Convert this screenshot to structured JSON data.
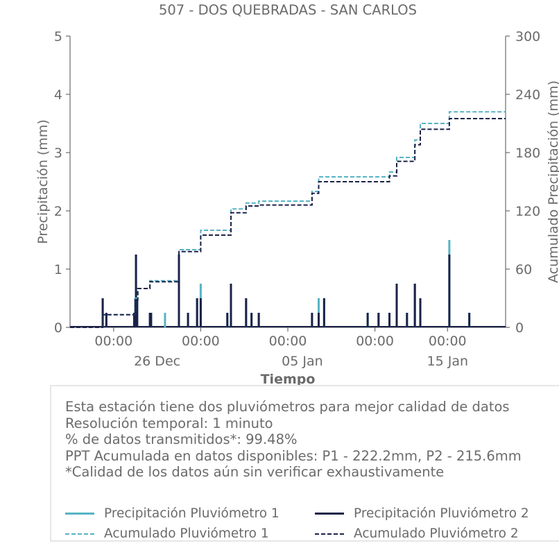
{
  "chart_data": {
    "type": "line",
    "title": "507 - DOS QUEBRADAS - SAN CARLOS",
    "xlabel": "Tiempo",
    "ylabel": "Precipitación (mm)",
    "y2label": "Acumulado Precipitación (mm)",
    "x_range": [
      "2023-12-20",
      "2024-01-19"
    ],
    "ylim": [
      0,
      5
    ],
    "y2lim": [
      0,
      300
    ],
    "yticks": [
      0,
      1,
      2,
      3,
      4,
      5
    ],
    "y2ticks": [
      0,
      60,
      120,
      180,
      240,
      300
    ],
    "xticks": [
      {
        "date": "2023-12-23",
        "label": "00:00",
        "sublabel": ""
      },
      {
        "date": "2023-12-29",
        "label": "00:00",
        "sublabel": ""
      },
      {
        "date": "2024-01-04",
        "label": "00:00",
        "sublabel": ""
      },
      {
        "date": "2024-01-10",
        "label": "00:00",
        "sublabel": ""
      },
      {
        "date": "2024-01-15",
        "label": "00:00",
        "sublabel": ""
      }
    ],
    "xlabels_lower": [
      {
        "date": "2023-12-26",
        "label": "26 Dec"
      },
      {
        "date": "2024-01-05",
        "label": "05 Jan"
      },
      {
        "date": "2024-01-15",
        "label": "15 Jan"
      }
    ],
    "grid": false,
    "series": [
      {
        "name": "Precipitación Pluviómetro 1",
        "axis": "left",
        "style": "bars",
        "color": "#56b4c4",
        "points": [
          [
            "2023-12-22 06:00",
            0.5
          ],
          [
            "2023-12-22 12:00",
            0.25
          ],
          [
            "2023-12-24 10:00",
            0.25
          ],
          [
            "2023-12-24 12:00",
            0.5
          ],
          [
            "2023-12-24 13:00",
            1.25
          ],
          [
            "2023-12-24 15:00",
            0.5
          ],
          [
            "2023-12-25 12:00",
            0.25
          ],
          [
            "2023-12-25 14:00",
            0.25
          ],
          [
            "2023-12-26 13:00",
            0.25
          ],
          [
            "2023-12-27 12:00",
            1.25
          ],
          [
            "2023-12-28 03:00",
            0.25
          ],
          [
            "2023-12-28 18:00",
            0.5
          ],
          [
            "2023-12-29 00:00",
            0.75
          ],
          [
            "2023-12-30 20:00",
            0.25
          ],
          [
            "2023-12-31 02:00",
            0.75
          ],
          [
            "2024-01-01 03:00",
            0.5
          ],
          [
            "2024-01-01 12:00",
            0.25
          ],
          [
            "2024-01-02 00:00",
            0.25
          ],
          [
            "2024-01-05 16:00",
            0.25
          ],
          [
            "2024-01-06 03:00",
            0.5
          ],
          [
            "2024-01-06 12:00",
            0.5
          ],
          [
            "2024-01-09 12:00",
            0.25
          ],
          [
            "2024-01-10 06:00",
            0.25
          ],
          [
            "2024-01-11 00:00",
            0.25
          ],
          [
            "2024-01-11 12:00",
            0.75
          ],
          [
            "2024-01-12 05:00",
            0.25
          ],
          [
            "2024-01-12 18:00",
            0.75
          ],
          [
            "2024-01-13 03:00",
            0.5
          ],
          [
            "2024-01-15 03:00",
            1.5
          ],
          [
            "2024-01-16 12:00",
            0.25
          ]
        ]
      },
      {
        "name": "Precipitación Pluviómetro 2",
        "axis": "left",
        "style": "bars",
        "color": "#1b2248",
        "points": [
          [
            "2023-12-22 06:00",
            0.5
          ],
          [
            "2023-12-22 12:00",
            0.25
          ],
          [
            "2023-12-24 10:00",
            0.25
          ],
          [
            "2023-12-24 12:00",
            0.5
          ],
          [
            "2023-12-24 13:00",
            1.25
          ],
          [
            "2023-12-24 15:00",
            0.5
          ],
          [
            "2023-12-25 12:00",
            0.25
          ],
          [
            "2023-12-25 14:00",
            0.25
          ],
          [
            "2023-12-27 12:00",
            1.25
          ],
          [
            "2023-12-28 03:00",
            0.25
          ],
          [
            "2023-12-28 18:00",
            0.5
          ],
          [
            "2023-12-29 00:00",
            0.5
          ],
          [
            "2023-12-30 20:00",
            0.25
          ],
          [
            "2023-12-31 02:00",
            0.75
          ],
          [
            "2024-01-01 03:00",
            0.5
          ],
          [
            "2024-01-01 12:00",
            0.25
          ],
          [
            "2024-01-02 00:00",
            0.25
          ],
          [
            "2024-01-05 16:00",
            0.25
          ],
          [
            "2024-01-06 03:00",
            0.25
          ],
          [
            "2024-01-06 12:00",
            0.5
          ],
          [
            "2024-01-09 12:00",
            0.25
          ],
          [
            "2024-01-10 06:00",
            0.25
          ],
          [
            "2024-01-11 00:00",
            0.25
          ],
          [
            "2024-01-11 12:00",
            0.75
          ],
          [
            "2024-01-12 05:00",
            0.25
          ],
          [
            "2024-01-12 18:00",
            0.75
          ],
          [
            "2024-01-13 03:00",
            0.5
          ],
          [
            "2024-01-15 03:00",
            1.25
          ],
          [
            "2024-01-16 12:00",
            0.25
          ]
        ]
      },
      {
        "name": "Acumulado Pluviómetro 1",
        "axis": "right",
        "style": "dashed-step",
        "color": "#56b4c4",
        "points": [
          [
            "2023-12-20 00:00",
            0
          ],
          [
            "2023-12-22 06:00",
            13
          ],
          [
            "2023-12-24 12:00",
            30
          ],
          [
            "2023-12-24 16:00",
            40
          ],
          [
            "2023-12-25 12:00",
            48
          ],
          [
            "2023-12-27 12:00",
            80
          ],
          [
            "2023-12-29 00:00",
            100
          ],
          [
            "2023-12-31 02:00",
            122
          ],
          [
            "2024-01-01 03:00",
            128
          ],
          [
            "2024-01-02 00:00",
            130
          ],
          [
            "2024-01-05 16:00",
            140
          ],
          [
            "2024-01-06 03:00",
            155
          ],
          [
            "2024-01-11 00:00",
            160
          ],
          [
            "2024-01-11 12:00",
            175
          ],
          [
            "2024-01-12 18:00",
            193
          ],
          [
            "2024-01-13 03:00",
            210
          ],
          [
            "2024-01-15 03:00",
            222
          ],
          [
            "2024-01-19 00:00",
            222
          ]
        ]
      },
      {
        "name": "Acumulado Pluviómetro 2",
        "axis": "right",
        "style": "dashed-step",
        "color": "#1b2248",
        "points": [
          [
            "2023-12-20 00:00",
            0
          ],
          [
            "2023-12-22 06:00",
            13
          ],
          [
            "2023-12-24 12:00",
            28
          ],
          [
            "2023-12-24 16:00",
            40
          ],
          [
            "2023-12-25 12:00",
            47
          ],
          [
            "2023-12-27 12:00",
            78
          ],
          [
            "2023-12-29 00:00",
            95
          ],
          [
            "2023-12-31 02:00",
            118
          ],
          [
            "2024-01-01 03:00",
            125
          ],
          [
            "2024-01-02 00:00",
            126
          ],
          [
            "2024-01-05 16:00",
            138
          ],
          [
            "2024-01-06 03:00",
            150
          ],
          [
            "2024-01-11 00:00",
            156
          ],
          [
            "2024-01-11 12:00",
            171
          ],
          [
            "2024-01-12 18:00",
            188
          ],
          [
            "2024-01-13 03:00",
            204
          ],
          [
            "2024-01-15 03:00",
            215
          ],
          [
            "2024-01-19 00:00",
            215
          ]
        ]
      }
    ],
    "legend_position": "bottom"
  },
  "info": {
    "lines": [
      "Esta estación tiene dos pluviómetros para mejor calidad de datos",
      "Resolución temporal: 1 minuto",
      "% de datos transmitidos*: 99.48%",
      "PPT Acumulada en datos disponibles: P1 - 222.2mm, P2 - 215.6mm",
      "*Calidad de los datos aún sin verificar exhaustivamente"
    ]
  },
  "legend": [
    {
      "label": "Precipitación Pluviómetro 1",
      "color": "#56b4c4",
      "style": "solid"
    },
    {
      "label": "Precipitación Pluviómetro 2",
      "color": "#1b2248",
      "style": "solid"
    },
    {
      "label": "Acumulado Pluviómetro 1",
      "color": "#56b4c4",
      "style": "dashed"
    },
    {
      "label": "Acumulado Pluviómetro 2",
      "color": "#1b2248",
      "style": "dashed"
    }
  ]
}
